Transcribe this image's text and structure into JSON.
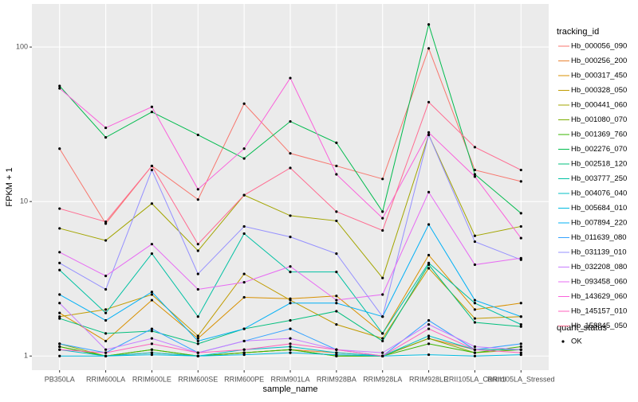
{
  "chart_data": {
    "type": "line",
    "log_y": true,
    "grid": true,
    "x_label": "sample_name",
    "y_label": "FPKM + 1",
    "legend_title": "tracking_id",
    "legend_position": "right",
    "point_legend_title": "quant_status",
    "point_legend_label": "OK",
    "point_color": "#000000",
    "categories": [
      "PB350LA",
      "RRIM600LA",
      "RRIM600LE",
      "RRIM600SE",
      "RRIM600PE",
      "RRIM901LA",
      "RRIM928BA",
      "RRIM928LA",
      "RRIM928LE",
      "RRII105LA_Control",
      "RRII105LA_Stressed"
    ],
    "ylim": [
      0.81,
      190
    ],
    "yticks": [
      1,
      10,
      100
    ],
    "series": [
      {
        "name": "Hb_000056_090",
        "color": "#F8766D",
        "values": [
          22,
          7.2,
          17,
          10.3,
          43,
          20.5,
          17,
          14,
          98,
          16,
          13.5
        ]
      },
      {
        "name": "Hb_000256_200",
        "color": "#EA8331",
        "values": [
          1.15,
          1.0,
          1.05,
          1.0,
          1.05,
          1.1,
          1.05,
          1.0,
          1.3,
          1.1,
          1.1
        ]
      },
      {
        "name": "Hb_000317_450",
        "color": "#D89000",
        "values": [
          1.9,
          1.25,
          2.3,
          1.3,
          2.4,
          2.35,
          2.45,
          1.4,
          4.5,
          2.0,
          2.2
        ]
      },
      {
        "name": "Hb_000328_050",
        "color": "#C09B00",
        "values": [
          1.8,
          2.0,
          2.5,
          1.35,
          3.4,
          2.3,
          1.6,
          1.3,
          3.7,
          1.75,
          1.8
        ]
      },
      {
        "name": "Hb_000441_060",
        "color": "#A3A500",
        "values": [
          6.7,
          5.6,
          9.7,
          4.8,
          11,
          8.1,
          7.5,
          3.2,
          27,
          6.0,
          6.9
        ]
      },
      {
        "name": "Hb_001080_070",
        "color": "#7CAE00",
        "values": [
          1.2,
          1.0,
          1.1,
          1.0,
          1.05,
          1.1,
          1.0,
          1.0,
          1.3,
          1.05,
          1.1
        ]
      },
      {
        "name": "Hb_001369_760",
        "color": "#39B600",
        "values": [
          1.15,
          1.0,
          1.1,
          1.0,
          1.05,
          1.1,
          1.0,
          1.0,
          1.2,
          1.05,
          1.15
        ]
      },
      {
        "name": "Hb_002276_070",
        "color": "#00BB4E",
        "values": [
          56,
          26,
          38,
          27,
          19,
          33,
          24,
          8.6,
          140,
          15,
          8.4
        ]
      },
      {
        "name": "Hb_002518_120",
        "color": "#00BF7D",
        "values": [
          1.75,
          1.4,
          1.45,
          1.2,
          1.5,
          1.7,
          1.95,
          1.25,
          3.9,
          1.65,
          1.55
        ]
      },
      {
        "name": "Hb_003777_250",
        "color": "#00C1A3",
        "values": [
          3.6,
          1.9,
          4.6,
          1.8,
          6.2,
          3.5,
          3.5,
          1.4,
          4.0,
          2.2,
          1.6
        ]
      },
      {
        "name": "Hb_004076_040",
        "color": "#00BFC4",
        "values": [
          1.1,
          1.0,
          1.05,
          1.0,
          1.1,
          1.15,
          1.05,
          1.0,
          1.35,
          1.1,
          1.1
        ]
      },
      {
        "name": "Hb_005684_010",
        "color": "#00BAE0",
        "values": [
          1.0,
          1.0,
          1.02,
          1.0,
          1.02,
          1.05,
          1.02,
          1.0,
          1.02,
          1.0,
          1.02
        ]
      },
      {
        "name": "Hb_007894_220",
        "color": "#00B0F6",
        "values": [
          2.5,
          1.7,
          2.6,
          1.25,
          1.5,
          2.2,
          2.2,
          1.8,
          7.1,
          2.3,
          1.8
        ]
      },
      {
        "name": "Hb_011639_080",
        "color": "#35A2FF",
        "values": [
          1.2,
          1.05,
          1.5,
          1.05,
          1.25,
          1.5,
          1.1,
          1.0,
          1.7,
          1.1,
          1.2
        ]
      },
      {
        "name": "Hb_031139_010",
        "color": "#9590FF",
        "values": [
          4.0,
          2.7,
          16,
          3.4,
          6.9,
          5.9,
          4.6,
          1.8,
          27,
          5.5,
          4.2
        ]
      },
      {
        "name": "Hb_032208_080",
        "color": "#C77CFF",
        "values": [
          2.2,
          1.1,
          1.3,
          1.05,
          1.25,
          1.3,
          1.1,
          1.05,
          1.6,
          1.15,
          1.1
        ]
      },
      {
        "name": "Hb_093458_060",
        "color": "#E76BF3",
        "values": [
          4.7,
          3.3,
          5.3,
          2.7,
          3.0,
          3.8,
          2.3,
          2.5,
          11.5,
          3.9,
          4.3
        ]
      },
      {
        "name": "Hb_143629_060",
        "color": "#FA62DB",
        "values": [
          54,
          30,
          41,
          12,
          22,
          63,
          15,
          7.8,
          28,
          14.5,
          5.8
        ]
      },
      {
        "name": "Hb_145157_010",
        "color": "#FF62BC",
        "values": [
          1.1,
          1.05,
          1.2,
          1.05,
          1.1,
          1.2,
          1.1,
          1.0,
          1.5,
          1.1,
          1.05
        ]
      },
      {
        "name": "Hb_158845_050",
        "color": "#FF6C91",
        "values": [
          9,
          7.4,
          17,
          5.3,
          11,
          16.5,
          8.6,
          6.5,
          44,
          22.5,
          16
        ]
      }
    ]
  }
}
